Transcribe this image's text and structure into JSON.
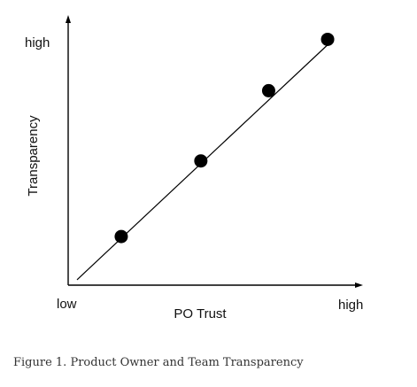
{
  "chart_data": {
    "type": "line",
    "xlabel": "PO Trust",
    "ylabel": "Transparency",
    "x_ticks": [
      "low",
      "high"
    ],
    "y_ticks": [
      "high"
    ],
    "xlim": [
      0,
      1
    ],
    "ylim": [
      0,
      1
    ],
    "trend_line": {
      "x": [
        0.03,
        0.89
      ],
      "y": [
        0.02,
        0.9
      ]
    },
    "points": [
      {
        "x": 0.18,
        "y": 0.18
      },
      {
        "x": 0.45,
        "y": 0.46
      },
      {
        "x": 0.68,
        "y": 0.72
      },
      {
        "x": 0.88,
        "y": 0.91
      }
    ],
    "colors": {
      "axis": "#000000",
      "line": "#000000",
      "point": "#000000"
    },
    "grid": false,
    "legend": "none"
  },
  "caption": "Figure 1. Product Owner and Team Transparency"
}
